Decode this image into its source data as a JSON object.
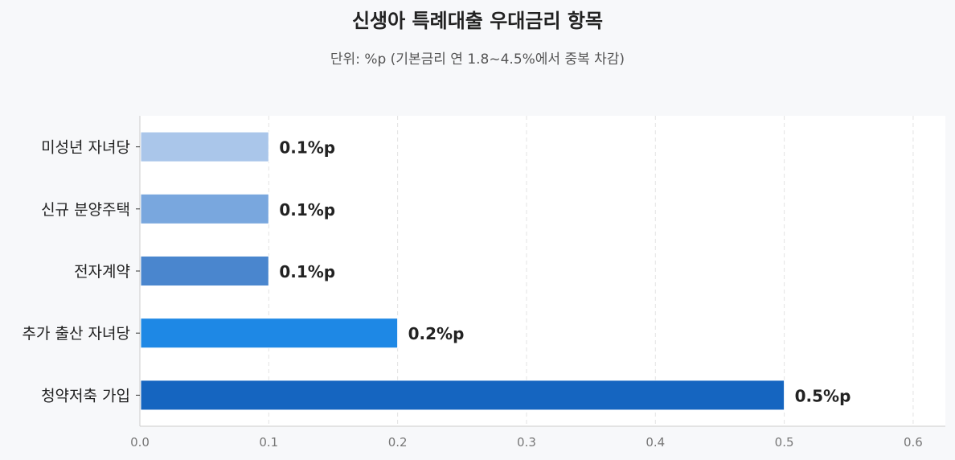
{
  "chart_data": {
    "type": "bar",
    "orientation": "horizontal",
    "title": "신생아 특례대출 우대금리 항목",
    "subtitle": "단위: %p (기본금리 연 1.8~4.5%에서 중복 차감)",
    "categories": [
      "미성년 자녀당",
      "신규 분양주택",
      "전자계약",
      "추가 출산 자녀당",
      "청약저축 가입"
    ],
    "values": [
      0.1,
      0.1,
      0.1,
      0.2,
      0.5
    ],
    "data_labels": [
      "0.1%p",
      "0.1%p",
      "0.1%p",
      "0.2%p",
      "0.5%p"
    ],
    "colors": [
      "#aac6ea",
      "#79a7de",
      "#4a86ce",
      "#1e88e5",
      "#1565c0"
    ],
    "xlim": [
      0,
      0.625
    ],
    "xticks": [
      "0.0",
      "0.1",
      "0.2",
      "0.3",
      "0.4",
      "0.5",
      "0.6"
    ],
    "xtick_values": [
      0,
      0.1,
      0.2,
      0.3,
      0.4,
      0.5,
      0.6
    ],
    "xlabel": "",
    "ylabel": "",
    "grid": "vertical dashed",
    "legend": "none"
  }
}
